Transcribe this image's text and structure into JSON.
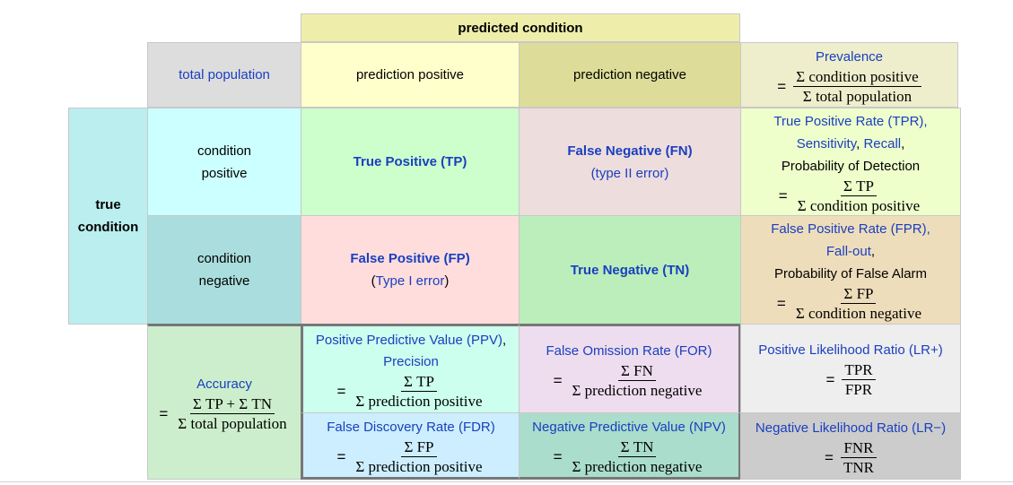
{
  "header": {
    "predicted_condition": "predicted condition"
  },
  "row_header": {
    "total_population": "total population",
    "prediction_positive": "prediction positive",
    "prediction_negative": "prediction negative"
  },
  "side": {
    "true": "true",
    "condition": "condition"
  },
  "cond_pos": {
    "line1": "condition",
    "line2": "positive"
  },
  "cond_neg": {
    "line1": "condition",
    "line2": "negative"
  },
  "prevalence": {
    "title": "Prevalence",
    "eq": "=",
    "num": "Σ condition positive",
    "den": "Σ total population"
  },
  "tp": {
    "label": "True Positive (TP)"
  },
  "fn": {
    "label": "False Negative (FN)",
    "sub": "(type II error)"
  },
  "tpr": {
    "l1": "True Positive Rate (TPR),",
    "sens": "Sensitivity",
    "comma": ", ",
    "recall": "Recall",
    "comma2": ",",
    "l3": "Probability of Detection",
    "eq": "=",
    "num": "Σ TP",
    "den": "Σ condition positive"
  },
  "fp": {
    "label": "False Positive (FP)",
    "sub_open": "(",
    "sub_link": "Type I error",
    "sub_close": ")"
  },
  "tn": {
    "label": "True Negative (TN)"
  },
  "fpr": {
    "l1": "False Positive Rate (FPR),",
    "l2": "Fall-out",
    "comma": ",",
    "l3": "Probability of False Alarm",
    "eq": "=",
    "num": "Σ FP",
    "den": "Σ condition negative"
  },
  "accuracy": {
    "title": "Accuracy",
    "eq": "=",
    "num": "Σ TP + Σ TN",
    "den": "Σ total population"
  },
  "ppv": {
    "l1": "Positive Predictive Value (PPV)",
    "comma": ",",
    "l2": "Precision",
    "eq": "=",
    "num": "Σ TP",
    "den": "Σ prediction positive"
  },
  "for": {
    "title": "False Omission Rate (FOR)",
    "eq": "=",
    "num": "Σ FN",
    "den": "Σ prediction negative"
  },
  "lrp": {
    "title": "Positive Likelihood Ratio (LR+)",
    "eq": "=",
    "num": "TPR",
    "den": "FPR"
  },
  "fdr": {
    "title": "False Discovery Rate (FDR)",
    "eq": "=",
    "num": "Σ FP",
    "den": "Σ prediction positive"
  },
  "npv": {
    "title": "Negative Predictive Value (NPV)",
    "eq": "=",
    "num": "Σ TN",
    "den": "Σ prediction negative"
  },
  "lrn": {
    "title": "Negative Likelihood Ratio (LR−)",
    "eq": "=",
    "num": "FNR",
    "den": "TNR"
  },
  "colors": {
    "link": "#1a3fbf",
    "header_yellow": "#f0f0a8",
    "tp_green": "#ccffcc",
    "fn_pink": "#eedddd",
    "tpr_yellow": "#eeffcc",
    "fp_pink": "#ffdddd",
    "fpr_tan": "#eeddbb",
    "teal": "#bbeeee",
    "teal_dark": "#aadddd"
  }
}
